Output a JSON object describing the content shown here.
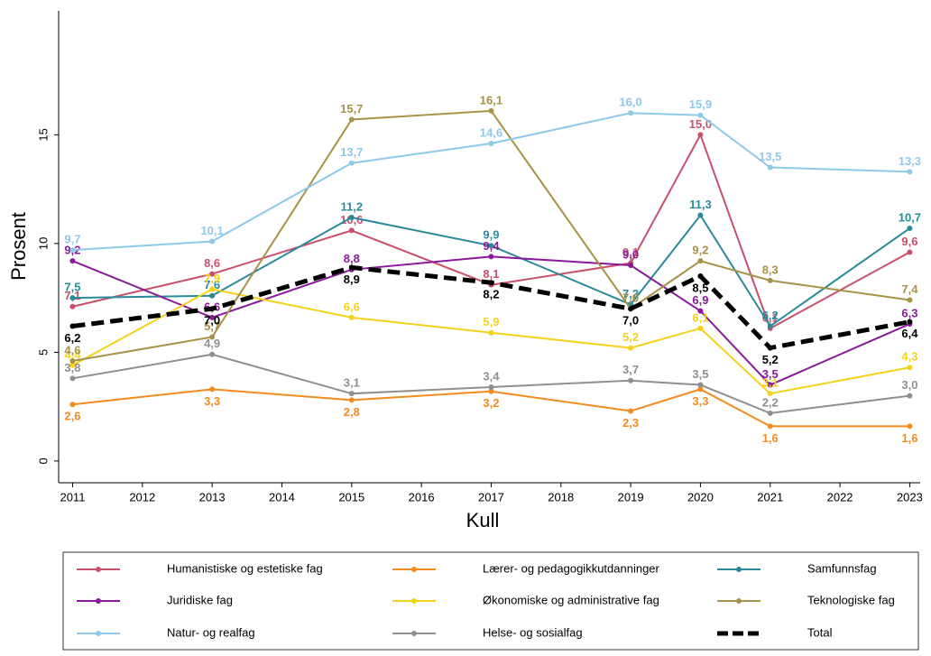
{
  "chart_data": {
    "type": "line",
    "x": [
      2011,
      2013,
      2015,
      2017,
      2019,
      2020,
      2021,
      2023
    ],
    "x_label": "Kull",
    "y_label": "Prosent",
    "xlim": [
      2010.8,
      2023.15
    ],
    "xticks": [
      2011,
      2012,
      2013,
      2014,
      2015,
      2016,
      2017,
      2018,
      2019,
      2020,
      2021,
      2022,
      2023
    ],
    "ylim": [
      -1,
      20.7
    ],
    "yticks": [
      0,
      5,
      10,
      15
    ],
    "series": [
      {
        "name": "Humanistiske og estetiske fag",
        "color": "#c8506a",
        "values": [
          7.1,
          8.6,
          10.6,
          8.1,
          9.1,
          15.0,
          6.1,
          9.6
        ],
        "value_labels": [
          "7,1",
          "8,6",
          "10,6",
          "8,1",
          "9,1",
          "15,0",
          "6,1",
          "9,6"
        ]
      },
      {
        "name": "Lærer- og pedagogikkutdanninger",
        "color": "#f58a1f",
        "values": [
          2.6,
          3.3,
          2.8,
          3.2,
          2.3,
          3.3,
          1.6,
          1.6
        ],
        "value_labels": [
          "2,6",
          "3,3",
          "2,8",
          "3,2",
          "2,3",
          "3,3",
          "1,6",
          "1,6"
        ]
      },
      {
        "name": "Samfunnsfag",
        "color": "#2a8a9a",
        "values": [
          7.5,
          7.6,
          11.2,
          9.9,
          7.2,
          11.3,
          6.2,
          10.7
        ],
        "value_labels": [
          "7,5",
          "7,6",
          "11,2",
          "9,9",
          "7,2",
          "11,3",
          "6,2",
          "10,7"
        ]
      },
      {
        "name": "Juridiske fag",
        "color": "#8a1a9a",
        "values": [
          9.2,
          6.6,
          8.8,
          9.4,
          9.0,
          6.9,
          3.5,
          6.3
        ],
        "value_labels": [
          "9,2",
          "6,6",
          "8,8",
          "9,4",
          "9,0",
          "6,9",
          "3,5",
          "6,3"
        ]
      },
      {
        "name": "Økonomiske og administrative fag",
        "color": "#f5d21a",
        "values": [
          4.4,
          7.9,
          6.6,
          5.9,
          5.2,
          6.1,
          3.1,
          4.3
        ],
        "value_labels": [
          "4,4",
          "7,9",
          "6,6",
          "5,9",
          "5,2",
          "6,1",
          "3,1",
          "4,3"
        ]
      },
      {
        "name": "Teknologiske fag",
        "color": "#a89248",
        "values": [
          4.6,
          5.7,
          15.7,
          16.1,
          7.0,
          9.2,
          8.3,
          7.4
        ],
        "value_labels": [
          "4,6",
          "5,7",
          "15,7",
          "16,1",
          "7,0",
          "9,2",
          "8,3",
          "7,4"
        ]
      },
      {
        "name": "Natur- og realfag",
        "color": "#8ec8ea",
        "values": [
          9.7,
          10.1,
          13.7,
          14.6,
          16.0,
          15.9,
          13.5,
          13.3
        ],
        "value_labels": [
          "9,7",
          "10,1",
          "13,7",
          "14,6",
          "16,0",
          "15,9",
          "13,5",
          "13,3"
        ]
      },
      {
        "name": "Helse- og sosialfag",
        "color": "#8f8f8f",
        "values": [
          3.8,
          4.9,
          3.1,
          3.4,
          3.7,
          3.5,
          2.2,
          3.0
        ],
        "value_labels": [
          "3,8",
          "4,9",
          "3,1",
          "3,4",
          "3,7",
          "3,5",
          "2,2",
          "3,0"
        ]
      },
      {
        "name": "Total",
        "color": "#000000",
        "dashed": true,
        "values": [
          6.2,
          7.0,
          8.9,
          8.2,
          7.0,
          8.5,
          5.2,
          6.4
        ],
        "value_labels": [
          "6,2",
          "7,0",
          "8,9",
          "8,2",
          "7,0",
          "8,5",
          "5,2",
          "6,4"
        ]
      }
    ]
  }
}
